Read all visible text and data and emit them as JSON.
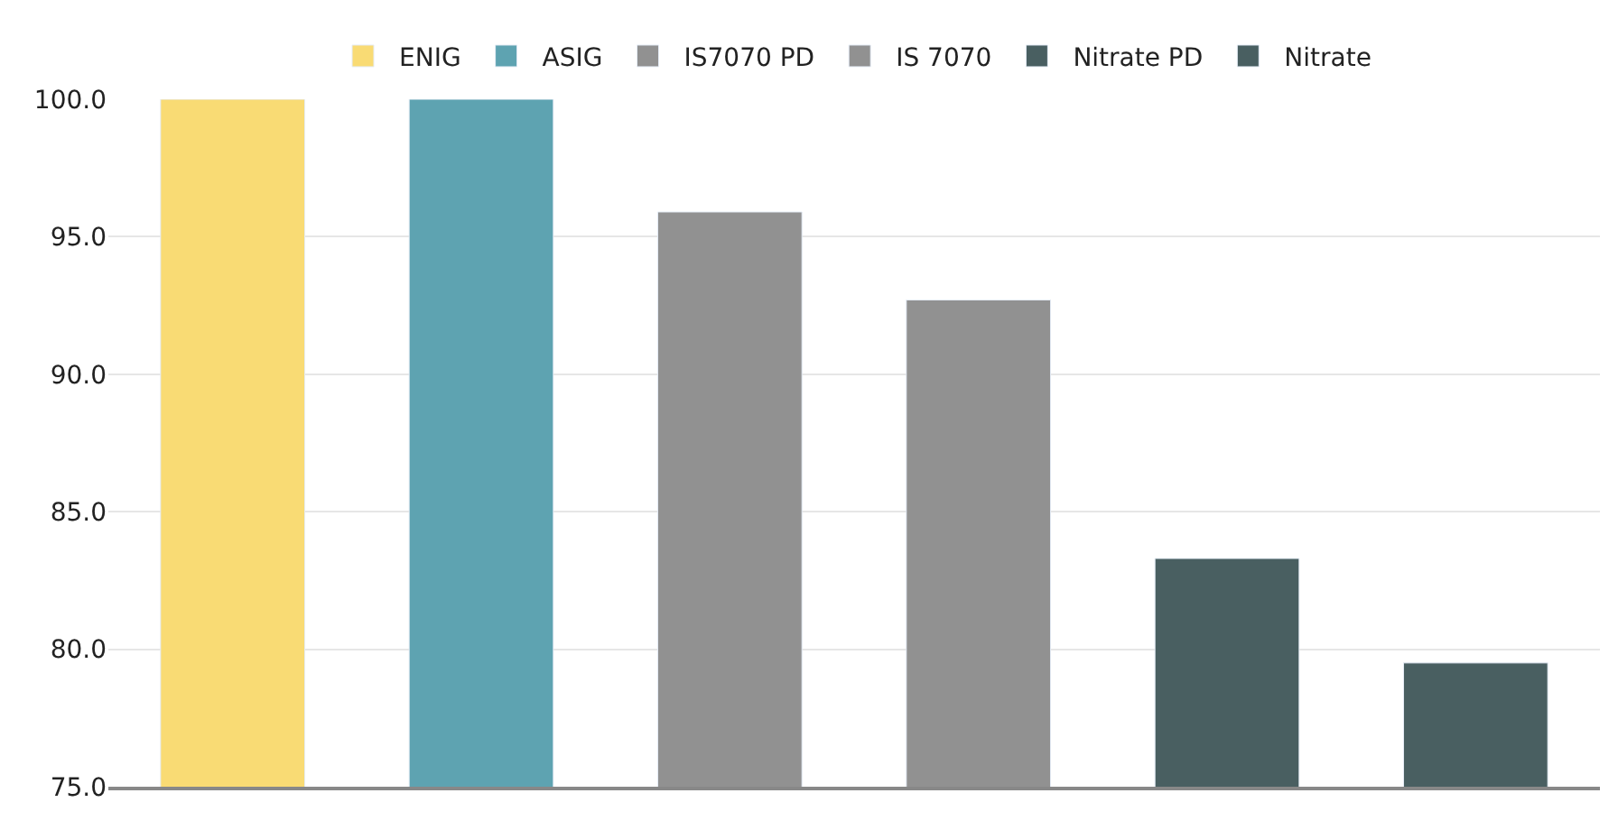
{
  "chart_data": {
    "type": "bar",
    "categories": [
      null,
      null,
      null,
      null,
      null,
      null
    ],
    "series": [
      {
        "name": "ENIG",
        "color": "#f9db74",
        "values": [
          100.0,
          null,
          null,
          null,
          null,
          null
        ]
      },
      {
        "name": "ASIG",
        "color": "#5ea3b1",
        "values": [
          null,
          100.0,
          null,
          null,
          null,
          null
        ]
      },
      {
        "name": "IS7070 PD",
        "color": "#919191",
        "values": [
          null,
          null,
          95.9,
          null,
          null,
          null
        ]
      },
      {
        "name": "IS 7070",
        "color": "#919191",
        "values": [
          null,
          null,
          null,
          92.7,
          null,
          null
        ]
      },
      {
        "name": "Nitrate PD",
        "color": "#495f61",
        "values": [
          null,
          null,
          null,
          null,
          83.3,
          null
        ]
      },
      {
        "name": "Nitrate",
        "color": "#495f61",
        "values": [
          null,
          null,
          null,
          null,
          null,
          79.5
        ]
      }
    ],
    "ylim": [
      75,
      100
    ],
    "yticks": [
      {
        "value": 75,
        "label": "75.0"
      },
      {
        "value": 80,
        "label": "80.0"
      },
      {
        "value": 85,
        "label": "85.0"
      },
      {
        "value": 90,
        "label": "90.0"
      },
      {
        "value": 95,
        "label": "95.0"
      },
      {
        "value": 100,
        "label": "100.0"
      }
    ],
    "grid": "y",
    "legend": "top"
  }
}
